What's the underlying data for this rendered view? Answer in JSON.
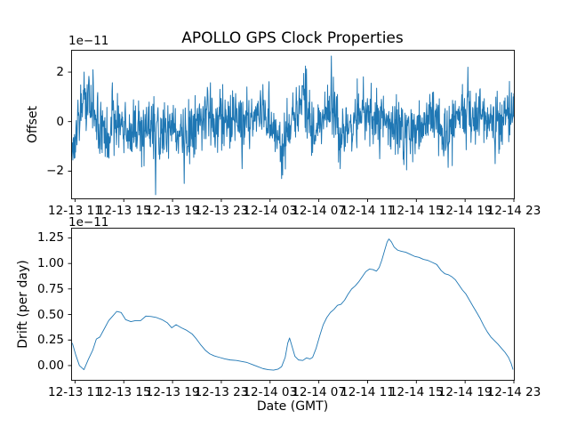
{
  "figure": {
    "title": "APOLLO GPS Clock Properties",
    "background_color": "#ffffff",
    "line_color": "#1f77b4",
    "spine_color": "#000000",
    "text_color": "#000000"
  },
  "chart_data": [
    {
      "type": "line",
      "title": "APOLLO GPS Clock Properties",
      "ylabel": "Offset",
      "xlabel": "",
      "offset_text": "1e−11",
      "unit_scale": "1e-11",
      "legend": "none",
      "grid": false,
      "xlim_hours": [
        10.68,
        47.0
      ],
      "ylim": [
        -3.1,
        2.9
      ],
      "yticks": [
        -2,
        0,
        2
      ],
      "ytick_labels": [
        "−2",
        "0",
        "2"
      ],
      "xtick_hours": [
        11,
        15,
        19,
        23,
        27,
        31,
        35,
        39,
        43,
        47
      ],
      "xtick_labels": [
        "12-13 11",
        "12-13 15",
        "12-13 19",
        "12-13 23",
        "12-14 03",
        "12-14 07",
        "12-14 11",
        "12-14 15",
        "12-14 19",
        "12-14 23"
      ],
      "series": [
        {
          "name": "clock-offset",
          "style": "noisy",
          "n_points": 1300,
          "noise_std": 0.58,
          "seed": 1214,
          "envelope": [
            [
              10.71,
              -1.3
            ],
            [
              10.85,
              -1.0
            ],
            [
              11.1,
              -0.5
            ],
            [
              11.5,
              0.6
            ],
            [
              11.8,
              1.3
            ],
            [
              12.1,
              0.9
            ],
            [
              12.5,
              0.4
            ],
            [
              13.0,
              -0.1
            ],
            [
              13.5,
              -0.5
            ],
            [
              14.0,
              -0.3
            ],
            [
              14.4,
              0.1
            ],
            [
              14.7,
              0.2
            ],
            [
              15.1,
              -0.3
            ],
            [
              15.4,
              -0.5
            ],
            [
              16.0,
              -0.3
            ],
            [
              16.6,
              -0.45
            ],
            [
              17.1,
              -0.3
            ],
            [
              17.6,
              -0.5
            ],
            [
              18.1,
              -0.25
            ],
            [
              18.6,
              -0.05
            ],
            [
              19.1,
              -0.2
            ],
            [
              19.6,
              -0.5
            ],
            [
              19.9,
              -0.7
            ],
            [
              20.3,
              -0.35
            ],
            [
              20.8,
              -0.1
            ],
            [
              21.3,
              0.05
            ],
            [
              21.8,
              0.35
            ],
            [
              22.0,
              0.45
            ],
            [
              22.4,
              -0.1
            ],
            [
              22.9,
              0.0
            ],
            [
              23.4,
              0.15
            ],
            [
              23.9,
              0.1
            ],
            [
              24.4,
              0.05
            ],
            [
              24.9,
              -0.05
            ],
            [
              25.4,
              0.2
            ],
            [
              25.9,
              0.35
            ],
            [
              26.3,
              0.5
            ],
            [
              26.7,
              0.3
            ],
            [
              27.1,
              -0.1
            ],
            [
              27.6,
              -0.7
            ],
            [
              27.95,
              -1.1
            ],
            [
              28.3,
              -0.4
            ],
            [
              28.8,
              0.1
            ],
            [
              29.3,
              0.55
            ],
            [
              29.75,
              1.0
            ],
            [
              30.1,
              0.45
            ],
            [
              30.5,
              -0.2
            ],
            [
              30.75,
              -0.6
            ],
            [
              31.1,
              0.0
            ],
            [
              31.5,
              0.3
            ],
            [
              31.95,
              0.5
            ],
            [
              32.4,
              0.1
            ],
            [
              32.8,
              -0.45
            ],
            [
              33.3,
              -0.1
            ],
            [
              33.9,
              0.15
            ],
            [
              34.4,
              0.3
            ],
            [
              34.9,
              0.1
            ],
            [
              35.4,
              0.15
            ],
            [
              35.9,
              0.2
            ],
            [
              36.4,
              0.3
            ],
            [
              36.9,
              0.1
            ],
            [
              37.4,
              -0.1
            ],
            [
              37.9,
              -0.35
            ],
            [
              38.4,
              -0.6
            ],
            [
              38.9,
              -0.4
            ],
            [
              39.4,
              -0.1
            ],
            [
              39.9,
              0.1
            ],
            [
              40.5,
              0.2
            ],
            [
              41.0,
              -0.1
            ],
            [
              41.5,
              -0.4
            ],
            [
              42.0,
              -0.05
            ],
            [
              42.5,
              0.25
            ],
            [
              43.1,
              0.35
            ],
            [
              43.6,
              0.15
            ],
            [
              44.1,
              0.25
            ],
            [
              44.7,
              0.1
            ],
            [
              45.2,
              -0.15
            ],
            [
              45.6,
              -0.1
            ],
            [
              46.1,
              0.0
            ],
            [
              46.6,
              0.15
            ],
            [
              46.95,
              0.6
            ]
          ],
          "spikes": [
            [
              10.82,
              -1.55
            ],
            [
              11.75,
              2.0
            ],
            [
              17.62,
              -2.95
            ],
            [
              19.95,
              -2.5
            ],
            [
              24.7,
              -1.9
            ],
            [
              26.4,
              1.5
            ],
            [
              27.95,
              -2.3
            ],
            [
              29.76,
              1.95
            ],
            [
              32.02,
              2.65
            ],
            [
              32.75,
              -1.9
            ],
            [
              36.0,
              -1.5
            ],
            [
              38.5,
              -1.3
            ],
            [
              41.62,
              -1.85
            ],
            [
              43.22,
              2.2
            ],
            [
              45.47,
              -1.7
            ]
          ]
        }
      ]
    },
    {
      "type": "line",
      "title": "",
      "ylabel": "Drift (per day)",
      "xlabel": "Date (GMT)",
      "offset_text": "1e−11",
      "unit_scale": "1e-11",
      "legend": "none",
      "grid": false,
      "xlim_hours": [
        10.68,
        47.0
      ],
      "ylim": [
        -0.14,
        1.35
      ],
      "yticks": [
        0.0,
        0.25,
        0.5,
        0.75,
        1.0,
        1.25
      ],
      "ytick_labels": [
        "0.00",
        "0.25",
        "0.50",
        "0.75",
        "1.00",
        "1.25"
      ],
      "xtick_hours": [
        11,
        15,
        19,
        23,
        27,
        31,
        35,
        39,
        43,
        47
      ],
      "xtick_labels": [
        "12-13 11",
        "12-13 15",
        "12-13 19",
        "12-13 23",
        "12-14 03",
        "12-14 07",
        "12-14 11",
        "12-14 15",
        "12-14 19",
        "12-14 23"
      ],
      "series": [
        {
          "name": "clock-drift",
          "style": "smooth",
          "points": [
            [
              10.78,
              0.22
            ],
            [
              11.07,
              0.1
            ],
            [
              11.36,
              0.0
            ],
            [
              11.73,
              -0.04
            ],
            [
              12.09,
              0.06
            ],
            [
              12.45,
              0.15
            ],
            [
              12.75,
              0.26
            ],
            [
              13.04,
              0.28
            ],
            [
              13.4,
              0.36
            ],
            [
              13.76,
              0.44
            ],
            [
              14.13,
              0.49
            ],
            [
              14.42,
              0.53
            ],
            [
              14.78,
              0.52
            ],
            [
              15.15,
              0.45
            ],
            [
              15.58,
              0.43
            ],
            [
              15.95,
              0.44
            ],
            [
              16.38,
              0.44
            ],
            [
              16.82,
              0.485
            ],
            [
              17.25,
              0.48
            ],
            [
              17.69,
              0.47
            ],
            [
              18.13,
              0.45
            ],
            [
              18.56,
              0.42
            ],
            [
              18.93,
              0.37
            ],
            [
              19.29,
              0.4
            ],
            [
              19.73,
              0.37
            ],
            [
              20.16,
              0.345
            ],
            [
              20.6,
              0.31
            ],
            [
              20.96,
              0.26
            ],
            [
              21.33,
              0.2
            ],
            [
              21.69,
              0.15
            ],
            [
              22.05,
              0.115
            ],
            [
              22.42,
              0.095
            ],
            [
              22.85,
              0.08
            ],
            [
              23.29,
              0.065
            ],
            [
              23.73,
              0.055
            ],
            [
              24.24,
              0.05
            ],
            [
              24.67,
              0.04
            ],
            [
              25.11,
              0.03
            ],
            [
              25.55,
              0.01
            ],
            [
              25.98,
              -0.01
            ],
            [
              26.42,
              -0.03
            ],
            [
              26.85,
              -0.04
            ],
            [
              27.29,
              -0.045
            ],
            [
              27.65,
              -0.035
            ],
            [
              27.95,
              -0.01
            ],
            [
              28.24,
              0.08
            ],
            [
              28.45,
              0.22
            ],
            [
              28.6,
              0.27
            ],
            [
              28.82,
              0.18
            ],
            [
              29.04,
              0.09
            ],
            [
              29.33,
              0.055
            ],
            [
              29.69,
              0.05
            ],
            [
              29.98,
              0.075
            ],
            [
              30.27,
              0.065
            ],
            [
              30.49,
              0.08
            ],
            [
              30.78,
              0.17
            ],
            [
              31.07,
              0.29
            ],
            [
              31.36,
              0.4
            ],
            [
              31.65,
              0.47
            ],
            [
              31.95,
              0.52
            ],
            [
              32.24,
              0.55
            ],
            [
              32.53,
              0.59
            ],
            [
              32.82,
              0.6
            ],
            [
              33.11,
              0.64
            ],
            [
              33.4,
              0.7
            ],
            [
              33.69,
              0.75
            ],
            [
              33.98,
              0.78
            ],
            [
              34.27,
              0.82
            ],
            [
              34.56,
              0.87
            ],
            [
              34.85,
              0.92
            ],
            [
              35.15,
              0.945
            ],
            [
              35.44,
              0.94
            ],
            [
              35.73,
              0.925
            ],
            [
              35.95,
              0.96
            ],
            [
              36.16,
              1.03
            ],
            [
              36.38,
              1.12
            ],
            [
              36.6,
              1.21
            ],
            [
              36.75,
              1.24
            ],
            [
              36.96,
              1.21
            ],
            [
              37.18,
              1.16
            ],
            [
              37.47,
              1.13
            ],
            [
              37.76,
              1.12
            ],
            [
              38.13,
              1.11
            ],
            [
              38.49,
              1.09
            ],
            [
              38.85,
              1.07
            ],
            [
              39.22,
              1.06
            ],
            [
              39.58,
              1.04
            ],
            [
              39.95,
              1.03
            ],
            [
              40.31,
              1.01
            ],
            [
              40.67,
              0.99
            ],
            [
              41.04,
              0.93
            ],
            [
              41.33,
              0.9
            ],
            [
              41.62,
              0.89
            ],
            [
              41.91,
              0.87
            ],
            [
              42.2,
              0.84
            ],
            [
              42.49,
              0.79
            ],
            [
              42.78,
              0.74
            ],
            [
              43.07,
              0.7
            ],
            [
              43.36,
              0.64
            ],
            [
              43.65,
              0.58
            ],
            [
              43.95,
              0.52
            ],
            [
              44.24,
              0.46
            ],
            [
              44.53,
              0.39
            ],
            [
              44.82,
              0.33
            ],
            [
              45.11,
              0.28
            ],
            [
              45.4,
              0.245
            ],
            [
              45.69,
              0.21
            ],
            [
              45.98,
              0.17
            ],
            [
              46.27,
              0.13
            ],
            [
              46.56,
              0.08
            ],
            [
              46.78,
              0.02
            ],
            [
              46.93,
              -0.04
            ]
          ]
        }
      ]
    }
  ]
}
